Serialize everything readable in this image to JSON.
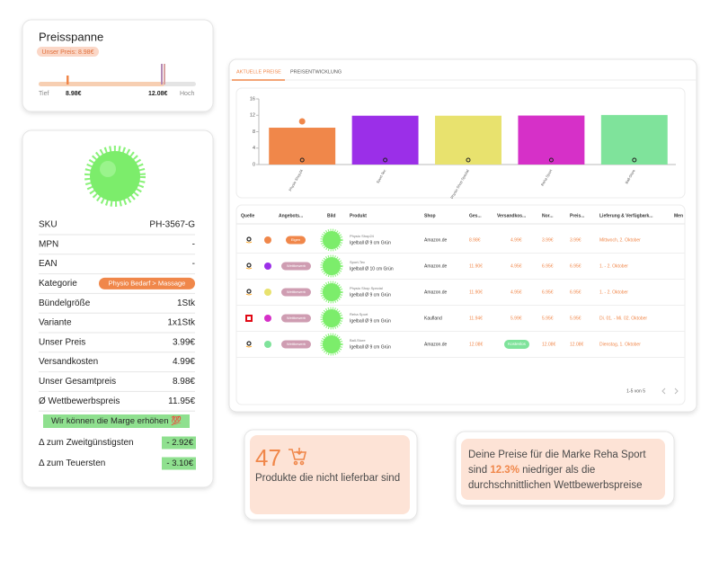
{
  "price_range": {
    "title": "Preisspanne",
    "our_price": "Unser Preis: 8.98€",
    "low_label": "Tief",
    "low": "8.98€",
    "high": "12.08€",
    "high_label": "Hoch"
  },
  "product": {
    "rows": [
      {
        "label": "SKU",
        "value": "PH-3567-G"
      },
      {
        "label": "MPN",
        "value": "-"
      },
      {
        "label": "EAN",
        "value": "-"
      },
      {
        "label": "Kategorie",
        "badge": "Physio Bedarf > Massage"
      },
      {
        "label": "Bündelgröße",
        "value": "1Stk"
      },
      {
        "label": "Variante",
        "value": "1x1Stk"
      },
      {
        "label": "Unser Preis",
        "value": "3.99€"
      },
      {
        "label": "Versandkosten",
        "value": "4.99€"
      },
      {
        "label": "Unser Gesamtpreis",
        "value": "8.98€"
      },
      {
        "label": "Ø Wettbewerbspreis",
        "value": "11.95€"
      }
    ],
    "hint": "Wir können die Marge erhöhen 💯",
    "deltas": [
      {
        "label": "Δ zum Zweitgünstigsten",
        "value": "- 2.92€"
      },
      {
        "label": "Δ zum Teuersten",
        "value": "- 3.10€"
      }
    ]
  },
  "tabs": [
    "AKTUELLE PREISE",
    "PREISENTWICKLUNG"
  ],
  "chart_data": {
    "type": "bar",
    "categories": [
      "Physio Shop24",
      "Sport-Tec",
      "Physio Shop Spezial",
      "Reha Sport",
      "Ball-Store"
    ],
    "values": [
      8.98,
      11.9,
      11.9,
      11.94,
      12.08
    ],
    "colors": [
      "#f0874a",
      "#9b2fe8",
      "#e8e26e",
      "#d630c8",
      "#7fe39b"
    ],
    "ylim": [
      0,
      16
    ],
    "yticks": [
      0,
      4,
      8,
      12,
      16
    ],
    "grid": false
  },
  "table": {
    "headers": [
      "Quelle",
      "Angebots...",
      "Bild",
      "Produkt",
      "Shop",
      "Ges...",
      "Versandkos...",
      "Nor...",
      "Preis...",
      "Lieferung & Verfügbark...",
      "Men"
    ],
    "rows": [
      {
        "badge": "Eigen",
        "name": "Physio Shop24",
        "description": "Igelball Ø 9 cm Grün",
        "shop": "Amazon.de",
        "total": "8.98€",
        "shipping": "4.99€",
        "normal": "3.99€",
        "price": "3.99€",
        "delivery": "Mittwoch, 2. Oktober"
      },
      {
        "badge": "Wettbewerb",
        "name": "Sport-Tec",
        "description": "Igelball Ø 10 cm Grün",
        "shop": "Amazon.de",
        "total": "11.90€",
        "shipping": "4.95€",
        "normal": "6.95€",
        "price": "6.95€",
        "delivery": "1. - 2. Oktober"
      },
      {
        "badge": "Wettbewerb",
        "name": "Physio Shop Spezial",
        "description": "Igelball Ø 9 cm Grün",
        "shop": "Amazon.de",
        "total": "11.90€",
        "shipping": "4.95€",
        "normal": "6.95€",
        "price": "6.95€",
        "delivery": "1. - 2. Oktober"
      },
      {
        "badge": "Wettbewerb",
        "name": "Reha Sport",
        "description": "Igelball Ø 9 cm Grün",
        "shop": "Kaufland",
        "total": "11.94€",
        "shipping": "5.99€",
        "normal": "5.95€",
        "price": "5.95€",
        "delivery": "Di. 01. - Mi. 02. Oktober"
      },
      {
        "badge": "Wettbewerb",
        "name": "Ball-Store",
        "description": "Igelball Ø 9 cm Grün",
        "shop": "Amazon.de",
        "total": "12.08€",
        "shipping_badge": "Kostenlos",
        "normal": "12.08€",
        "price": "12.08€",
        "delivery": "Dienstag, 1. Oktober"
      }
    ],
    "pagination": "1-5 von 5"
  },
  "cards": {
    "unavailable": {
      "count": 47,
      "text": "Produkte die nicht lieferbar sind"
    },
    "insight": {
      "before": "Deine Preise für die Marke Reha Sport sind",
      "highlight": "12.3%",
      "after": "niedriger als die durchschnittlichen Wettbewerbspreise"
    }
  }
}
